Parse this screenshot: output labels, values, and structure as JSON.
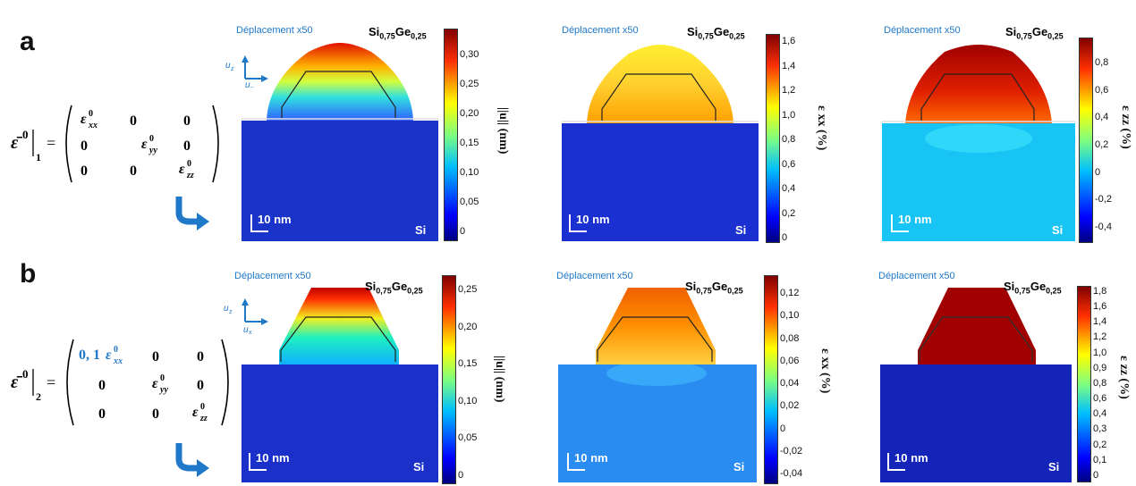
{
  "rows": [
    {
      "letter": "a",
      "equation": {
        "lhs": "ε̄⁰",
        "subscript": "1",
        "m11": "ε⁰xx",
        "m22": "ε⁰yy",
        "m33": "ε⁰zz",
        "zero": "0"
      },
      "panels": [
        {
          "displacement": "Déplacement x50",
          "material_si": "Si",
          "material_x": "0,75",
          "material_ge": "Ge",
          "material_y": "0,25",
          "scale": "10 nm",
          "substrate": "Si",
          "colorbar_label": "||u|| (nm)",
          "ticks": [
            "0,30",
            "0,25",
            "0,20",
            "0,15",
            "0,10",
            "0,05",
            "0"
          ]
        },
        {
          "displacement": "Déplacement x50",
          "material_si": "Si",
          "material_x": "0,75",
          "material_ge": "Ge",
          "material_y": "0,25",
          "scale": "10 nm",
          "substrate": "Si",
          "colorbar_label": "ε xx (%)",
          "ticks": [
            "1,6",
            "1,4",
            "1,2",
            "1,0",
            "0,8",
            "0,6",
            "0,4",
            "0,2",
            "0"
          ]
        },
        {
          "displacement": "Déplacement x50",
          "material_si": "Si",
          "material_x": "0,75",
          "material_ge": "Ge",
          "material_y": "0,25",
          "scale": "10 nm",
          "substrate": "Si",
          "colorbar_label": "ε zz (%)",
          "ticks": [
            "0,8",
            "0,6",
            "0,4",
            "0,2",
            "0",
            "-0,2",
            "-0,4"
          ]
        }
      ]
    },
    {
      "letter": "b",
      "equation": {
        "lhs": "ε̄⁰",
        "subscript": "2",
        "m11": "0, 1ε⁰xx",
        "m22": "ε⁰yy",
        "m33": "ε⁰zz",
        "zero": "0"
      },
      "panels": [
        {
          "displacement": "Déplacement x50",
          "material_si": "Si",
          "material_x": "0,75",
          "material_ge": "Ge",
          "material_y": "0,25",
          "scale": "10 nm",
          "substrate": "Si",
          "colorbar_label": "||u|| (nm)",
          "ticks": [
            "0,25",
            "0,20",
            "0,15",
            "0,10",
            "0,05",
            "0"
          ]
        },
        {
          "displacement": "Déplacement x50",
          "material_si": "Si",
          "material_x": "0,75",
          "material_ge": "Ge",
          "material_y": "0,25",
          "scale": "10 nm",
          "substrate": "Si",
          "colorbar_label": "ε xx (%)",
          "ticks": [
            "0,12",
            "0,10",
            "0,08",
            "0,06",
            "0,04",
            "0,02",
            "0",
            "-0,02",
            "-0,04"
          ]
        },
        {
          "displacement": "Déplacement x50",
          "material_si": "Si",
          "material_x": "0,75",
          "material_ge": "Ge",
          "material_y": "0,25",
          "scale": "10 nm",
          "substrate": "Si",
          "colorbar_label": "ε zz (%)",
          "ticks": [
            "1,8",
            "1,6",
            "1,4",
            "1,2",
            "1,0",
            "0,9",
            "0,8",
            "0,6",
            "0,4",
            "0,3",
            "0,2",
            "0,1",
            "0"
          ]
        }
      ]
    }
  ],
  "axes_icon": {
    "uz": "uz",
    "ux": "ux"
  },
  "colors": {
    "accent_blue": "#1f78c8",
    "jet_low": "#0a1e8c",
    "jet_high": "#800000"
  }
}
